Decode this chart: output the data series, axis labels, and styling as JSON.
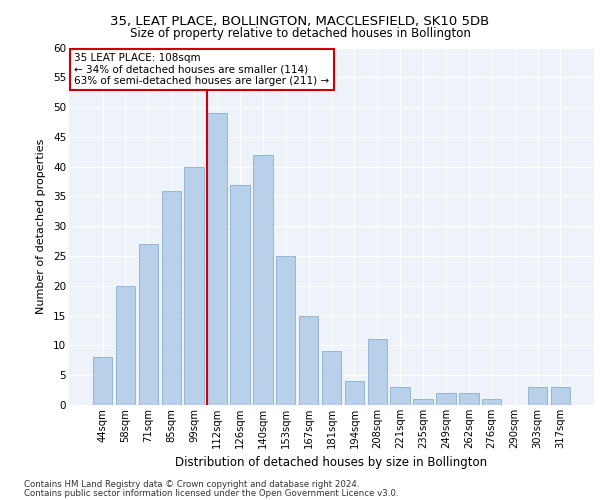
{
  "title1": "35, LEAT PLACE, BOLLINGTON, MACCLESFIELD, SK10 5DB",
  "title2": "Size of property relative to detached houses in Bollington",
  "xlabel": "Distribution of detached houses by size in Bollington",
  "ylabel": "Number of detached properties",
  "categories": [
    "44sqm",
    "58sqm",
    "71sqm",
    "85sqm",
    "99sqm",
    "112sqm",
    "126sqm",
    "140sqm",
    "153sqm",
    "167sqm",
    "181sqm",
    "194sqm",
    "208sqm",
    "221sqm",
    "235sqm",
    "249sqm",
    "262sqm",
    "276sqm",
    "290sqm",
    "303sqm",
    "317sqm"
  ],
  "values": [
    8,
    20,
    27,
    36,
    40,
    49,
    37,
    42,
    25,
    15,
    9,
    4,
    11,
    3,
    1,
    2,
    2,
    1,
    0,
    3,
    3
  ],
  "bar_color": "#b8d0ea",
  "bar_edge_color": "#8aafcf",
  "vline_color": "#cc0000",
  "annotation_title": "35 LEAT PLACE: 108sqm",
  "annotation_line1": "← 34% of detached houses are smaller (114)",
  "annotation_line2": "63% of semi-detached houses are larger (211) →",
  "footer1": "Contains HM Land Registry data © Crown copyright and database right 2024.",
  "footer2": "Contains public sector information licensed under the Open Government Licence v3.0.",
  "ylim": [
    0,
    60
  ],
  "yticks": [
    0,
    5,
    10,
    15,
    20,
    25,
    30,
    35,
    40,
    45,
    50,
    55,
    60
  ],
  "plot_bg_color": "#eef2f9",
  "vline_bar_index": 5
}
